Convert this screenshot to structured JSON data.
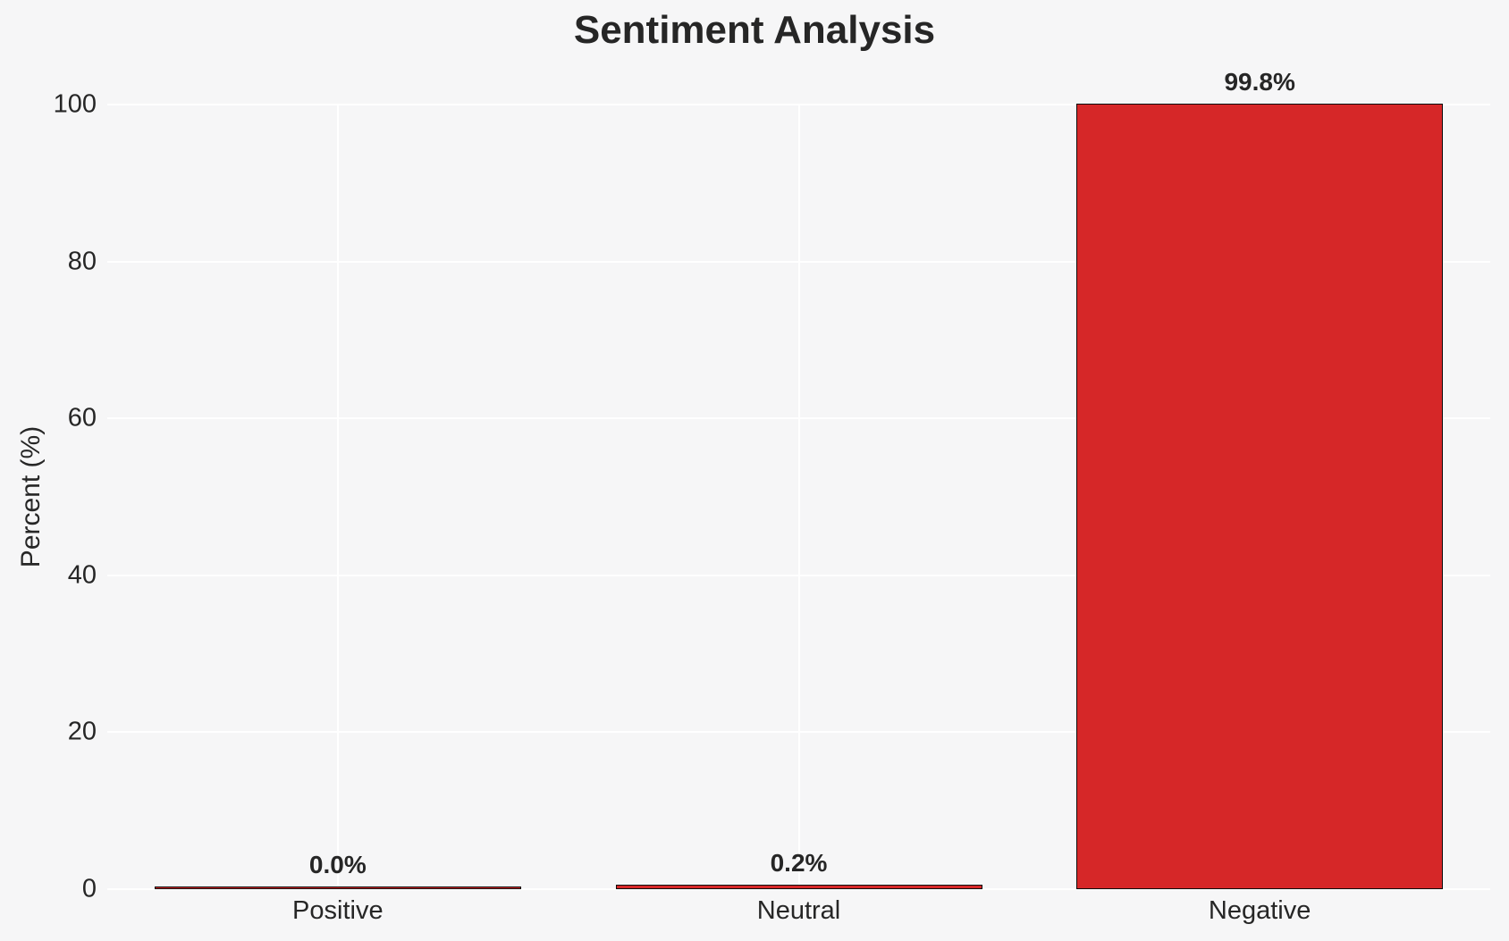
{
  "chart_data": {
    "type": "bar",
    "title": "Sentiment Analysis",
    "ylabel": "Percent (%)",
    "xlabel": "",
    "categories": [
      "Positive",
      "Neutral",
      "Negative"
    ],
    "values": [
      0.0,
      0.2,
      99.8
    ],
    "value_labels": [
      "0.0%",
      "0.2%",
      "99.8%"
    ],
    "yticks": [
      0,
      20,
      40,
      60,
      80,
      100
    ],
    "ylim": [
      0,
      100
    ],
    "grid": "on",
    "legend": "none",
    "colors": {
      "bar_fill": "#d62728",
      "bar_edge": "#0d0d0d",
      "background": "#f6f6f7",
      "gridline": "#ffffff",
      "text": "#262626"
    }
  }
}
